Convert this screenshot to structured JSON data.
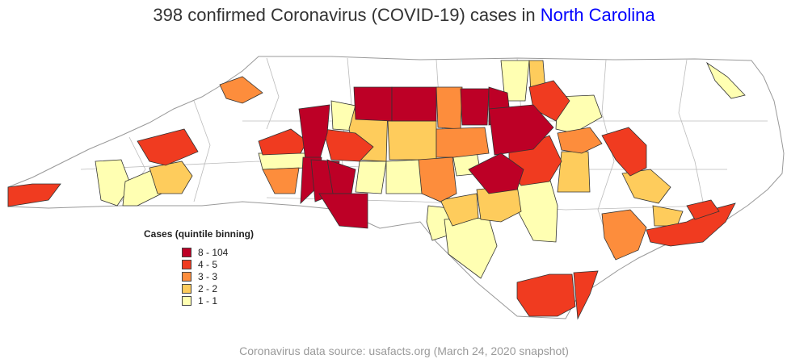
{
  "title": {
    "prefix": "398 confirmed Coronavirus (COVID-19) cases in",
    "state": "North Carolina"
  },
  "legend": {
    "title": "Cases (quintile binning)",
    "bins": [
      {
        "label": "8 - 104",
        "color": "#bd0026"
      },
      {
        "label": "4 - 5",
        "color": "#f03b20"
      },
      {
        "label": "3 - 3",
        "color": "#fd8d3c"
      },
      {
        "label": "2 - 2",
        "color": "#fecc5c"
      },
      {
        "label": "1 - 1",
        "color": "#ffffb2"
      }
    ]
  },
  "footer": "Coronavirus data source: usafacts.org (March 24, 2020 snapshot)",
  "colors": {
    "title_text": "#333333",
    "state_link": "#0000ff",
    "footer_text": "#9a9a9a",
    "no_data": "#ffffff",
    "county_border": "#aaaaaa",
    "case_border": "#333333"
  }
}
